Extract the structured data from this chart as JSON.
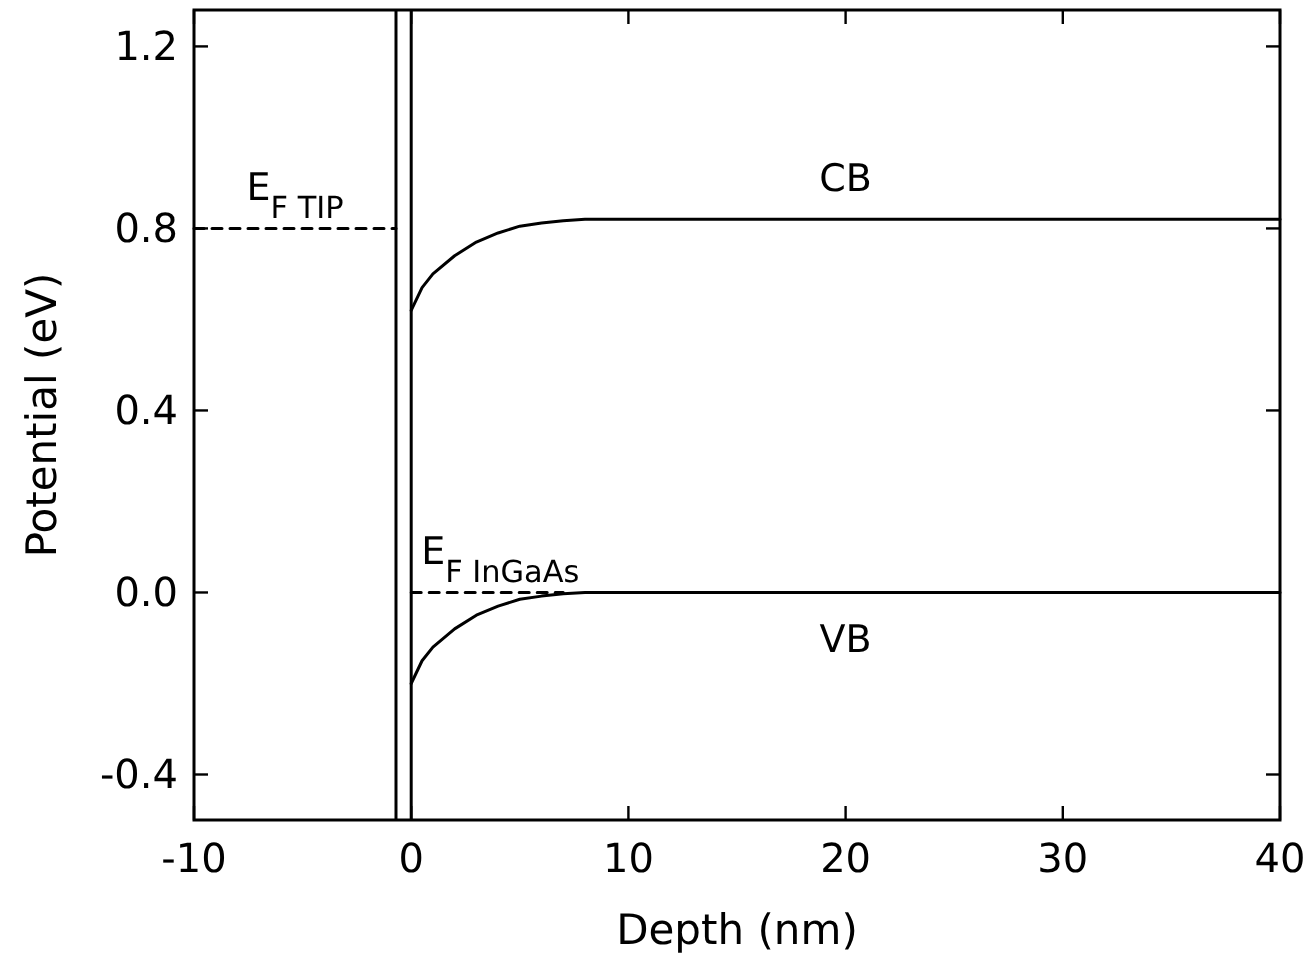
{
  "chart_data": {
    "type": "line",
    "xlabel": "Depth (nm)",
    "ylabel": "Potential (eV)",
    "xlim": [
      -10,
      40
    ],
    "xticks": [
      -10,
      0,
      10,
      20,
      30,
      40
    ],
    "ylim": [
      -0.5,
      1.28
    ],
    "yticks": [
      -0.4,
      {
        "value": 0,
        "label": "0.0"
      },
      0.4,
      0.8,
      1.2
    ],
    "grid": false,
    "marker": "none",
    "series": [
      {
        "name": "CB",
        "color": "#000000",
        "line_style": "solid",
        "x": [
          0,
          0.5,
          1,
          2,
          3,
          4,
          5,
          6,
          7,
          8,
          9,
          40
        ],
        "values": [
          0.62,
          0.67,
          0.7,
          0.74,
          0.77,
          0.79,
          0.805,
          0.812,
          0.817,
          0.82,
          0.82,
          0.82
        ]
      },
      {
        "name": "VB",
        "color": "#000000",
        "line_style": "solid",
        "x": [
          0,
          0.5,
          1,
          2,
          3,
          4,
          5,
          6,
          7,
          8,
          9,
          40
        ],
        "values": [
          -0.2,
          -0.15,
          -0.12,
          -0.08,
          -0.05,
          -0.03,
          -0.015,
          -0.008,
          -0.003,
          0,
          0,
          0
        ]
      },
      {
        "name": "E$_{F TIP}$",
        "color": "#000000",
        "line_style": "dashed",
        "x": [
          -10,
          -0.7
        ],
        "values": [
          0.8,
          0.8
        ]
      },
      {
        "name": "E$_{F InGaAs}$",
        "color": "#000000",
        "line_style": "dashed",
        "x": [
          0,
          7
        ],
        "values": [
          0,
          0
        ]
      }
    ],
    "ref_lines": [
      {
        "axis": "x",
        "value": -0.7,
        "color": "#000000",
        "line_style": "solid"
      },
      {
        "axis": "x",
        "value": 0,
        "color": "#000000",
        "line_style": "solid"
      }
    ]
  }
}
